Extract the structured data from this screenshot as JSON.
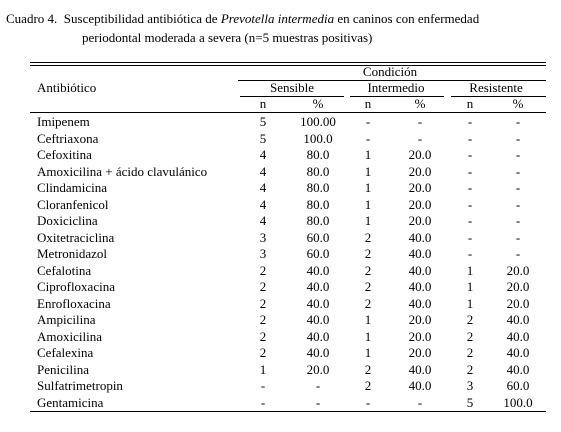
{
  "caption": {
    "label": "Cuadro 4.",
    "line1_pre": "Susceptibilidad antibiótica de",
    "species": "Prevotella intermedia",
    "line1_post": "en caninos con enfermedad",
    "line2": "periodontal moderada a severa (n=5 muestras positivas)"
  },
  "header": {
    "antibiotic": "Antibiótico",
    "condition": "Condición",
    "groups": [
      "Sensible",
      "Intermedio",
      "Resistente"
    ],
    "subcolumns": [
      "n",
      "%",
      "n",
      "%",
      "n",
      "%"
    ]
  },
  "rows": [
    [
      "Imipenem",
      "5",
      "100.00",
      "-",
      "-",
      "-",
      "-"
    ],
    [
      "Ceftriaxona",
      "5",
      "100.0",
      "-",
      "-",
      "-",
      "-"
    ],
    [
      "Cefoxitina",
      "4",
      "80.0",
      "1",
      "20.0",
      "-",
      "-"
    ],
    [
      "Amoxicilina + ácido clavulánico",
      "4",
      "80.0",
      "1",
      "20.0",
      "-",
      "-"
    ],
    [
      "Clindamicina",
      "4",
      "80.0",
      "1",
      "20.0",
      "-",
      "-"
    ],
    [
      "Cloranfenicol",
      "4",
      "80.0",
      "1",
      "20.0",
      "-",
      "-"
    ],
    [
      "Doxiciclina",
      "4",
      "80.0",
      "1",
      "20.0",
      "-",
      "-"
    ],
    [
      "Oxitetraciclina",
      "3",
      "60.0",
      "2",
      "40.0",
      "-",
      "-"
    ],
    [
      "Metronidazol",
      "3",
      "60.0",
      "2",
      "40.0",
      "-",
      "-"
    ],
    [
      "Cefalotina",
      "2",
      "40.0",
      "2",
      "40.0",
      "1",
      "20.0"
    ],
    [
      "Ciprofloxacina",
      "2",
      "40.0",
      "2",
      "40.0",
      "1",
      "20.0"
    ],
    [
      "Enrofloxacina",
      "2",
      "40.0",
      "2",
      "40.0",
      "1",
      "20.0"
    ],
    [
      "Ampicilina",
      "2",
      "40.0",
      "1",
      "20.0",
      "2",
      "40.0"
    ],
    [
      "Amoxicilina",
      "2",
      "40.0",
      "1",
      "20.0",
      "2",
      "40.0"
    ],
    [
      "Cefalexina",
      "2",
      "40.0",
      "1",
      "20.0",
      "2",
      "40.0"
    ],
    [
      "Penicilina",
      "1",
      "20.0",
      "2",
      "40.0",
      "2",
      "40.0"
    ],
    [
      "Sulfatrimetropin",
      "-",
      "-",
      "2",
      "40.0",
      "3",
      "60.0"
    ],
    [
      "Gentamicina",
      "-",
      "-",
      "-",
      "-",
      "5",
      "100.0"
    ]
  ]
}
